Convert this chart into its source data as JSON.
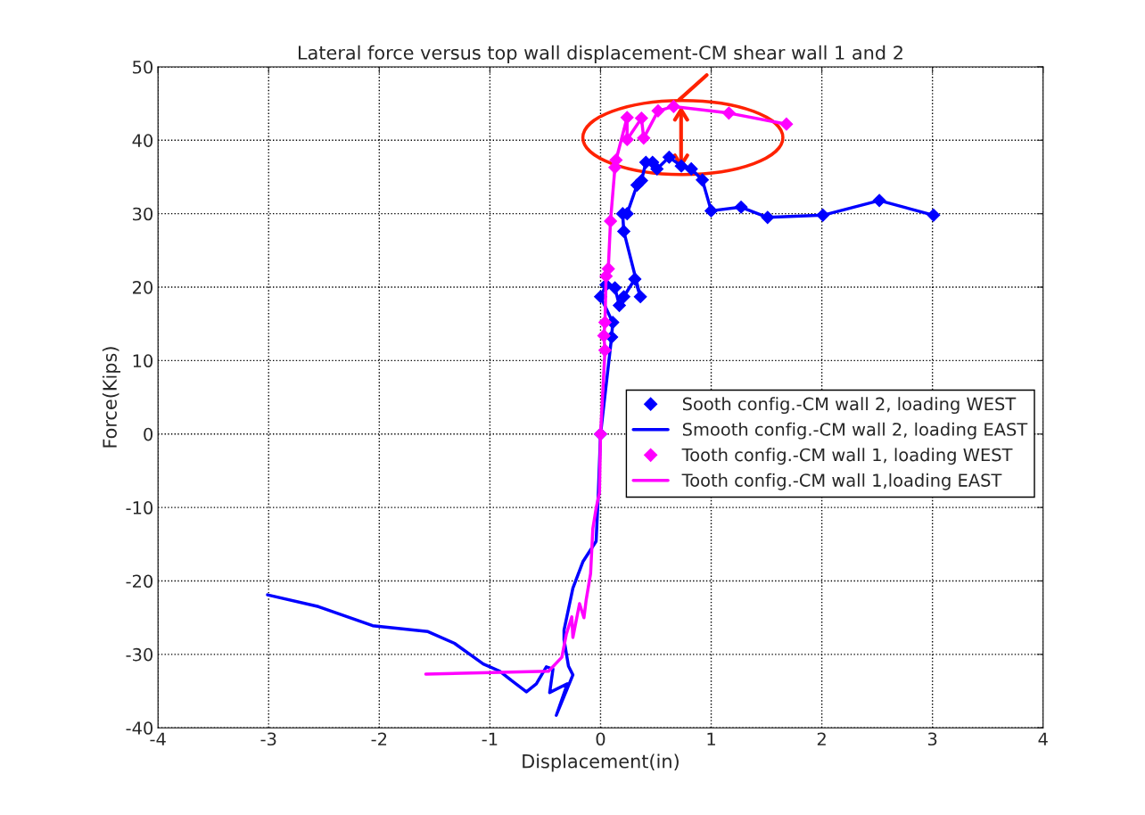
{
  "chart_data": {
    "type": "line",
    "title": "Lateral force versus top wall displacement-CM shear wall 1 and 2",
    "xlabel": "Displacement(in)",
    "ylabel": "Force(Kips)",
    "xlim": [
      -4,
      4
    ],
    "xticks": [
      -4,
      -3,
      -2,
      -1,
      0,
      1,
      2,
      3,
      4
    ],
    "ylim": [
      -40,
      50
    ],
    "yticks": [
      -40,
      -30,
      -20,
      -10,
      0,
      10,
      20,
      30,
      40,
      50
    ],
    "grid": true,
    "legend": "right",
    "series": [
      {
        "name": "Sooth config.-CM wall 2, loading WEST",
        "color": "#0000ff",
        "marker": "diamond",
        "line_style": "solid",
        "x": [
          0,
          0.1,
          0.11,
          0,
          0.05,
          0.13,
          0.17,
          0.21,
          0.31,
          0.36,
          0.21,
          0.2,
          0.24,
          0.33,
          0.37,
          0.41,
          0.47,
          0.51,
          0.62,
          0.73,
          0.82,
          0.92,
          1.0,
          1.27,
          1.51,
          2.01,
          2.52,
          3.01
        ],
        "values": [
          0,
          13.2,
          15.2,
          18.7,
          20.3,
          19.9,
          17.5,
          18.7,
          21.1,
          18.7,
          27.6,
          30,
          30,
          33.9,
          34.5,
          37,
          37,
          36.1,
          37.7,
          36.5,
          36.1,
          34.6,
          30.4,
          30.9,
          29.5,
          29.8,
          31.8,
          29.8
        ]
      },
      {
        "name": "Smooth config.-CM wall 2, loading EAST",
        "color": "#0000ff",
        "marker": "none",
        "line_style": "solid",
        "x": [
          0,
          -0.02,
          -0.04,
          -0.16,
          -0.25,
          -0.33,
          -0.33,
          -0.29,
          -0.25,
          -0.4,
          -0.3,
          -0.46,
          -0.43,
          -0.49,
          -0.58,
          -0.67,
          -0.81,
          -0.91,
          -1.06,
          -1.32,
          -1.56,
          -2.06,
          -2.55,
          -3.01
        ],
        "values": [
          0,
          -8,
          -14.6,
          -17.4,
          -21,
          -26.7,
          -28,
          -31.6,
          -32.8,
          -38.3,
          -34,
          -35.2,
          -32,
          -31.7,
          -34,
          -35.1,
          -33.5,
          -32.3,
          -31.3,
          -28.5,
          -26.9,
          -26.1,
          -23.5,
          -21.9
        ]
      },
      {
        "name": "Tooth config.-CM wall 1, loading WEST",
        "color": "#ff00ff",
        "marker": "diamond",
        "line_style": "solid",
        "x": [
          0,
          0.04,
          0.03,
          0.04,
          0.05,
          0.07,
          0.09,
          0.13,
          0.14,
          0.24,
          0.24,
          0.37,
          0.39,
          0.52,
          0.66,
          1.16,
          1.68
        ],
        "values": [
          0,
          11.4,
          13.4,
          15.2,
          21.5,
          22.5,
          29,
          36.3,
          37.3,
          43.1,
          40.1,
          43,
          40.3,
          44,
          44.6,
          43.7,
          42.2
        ]
      },
      {
        "name": "Tooth config.-CM wall 1,loading EAST",
        "color": "#ff00ff",
        "marker": "none",
        "line_style": "solid",
        "x": [
          0,
          -0.01,
          -0.04,
          -0.07,
          -0.09,
          -0.13,
          -0.15,
          -0.19,
          -0.25,
          -0.26,
          -0.31,
          -0.35,
          -0.47,
          -1.58
        ],
        "values": [
          0,
          -8,
          -10.1,
          -12.9,
          -19,
          -22.6,
          -25,
          -23.1,
          -27.7,
          -24.9,
          -27.3,
          -30.4,
          -32.3,
          -32.7
        ]
      }
    ]
  }
}
